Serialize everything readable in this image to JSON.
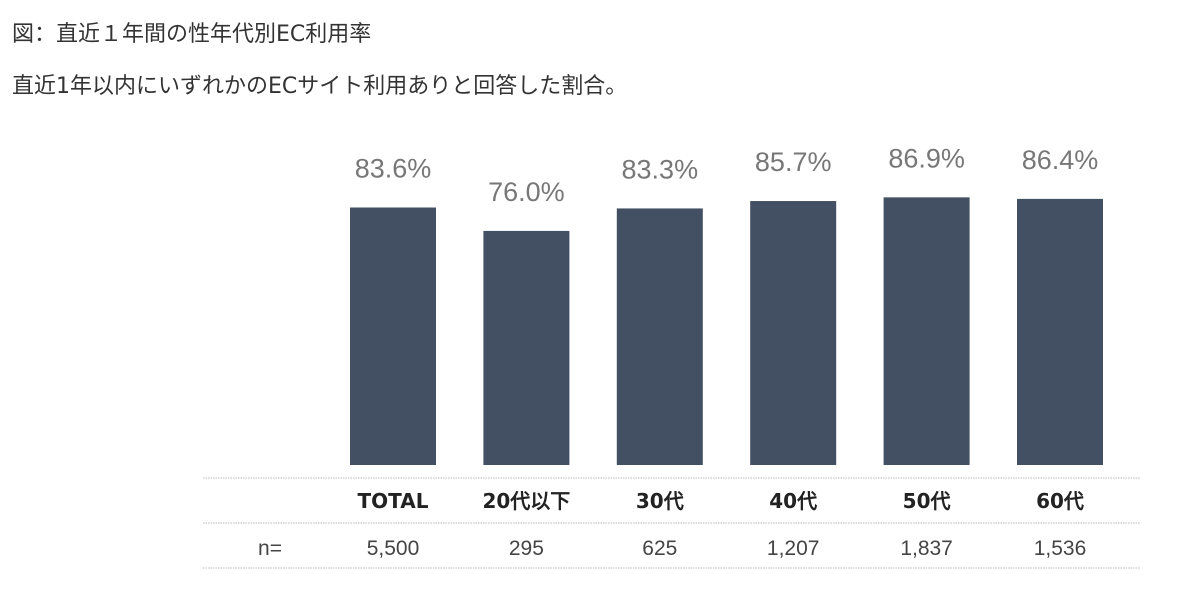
{
  "title": "図：直近１年間の性年代別EC利用率",
  "subtitle": "直近1年以内にいずれかのECサイト利用ありと回答した割合。",
  "colors": {
    "bar": "#434f62",
    "rule": "#c8c8c8"
  },
  "chart_data": {
    "type": "bar",
    "categories": [
      "TOTAL",
      "20代以下",
      "30代",
      "40代",
      "50代",
      "60代"
    ],
    "values": [
      83.6,
      76.0,
      83.3,
      85.7,
      86.9,
      86.4
    ],
    "value_labels": [
      "83.6%",
      "76.0%",
      "83.3%",
      "85.7%",
      "86.9%",
      "86.4%"
    ],
    "n_label": "n=",
    "n_values": [
      "5,500",
      "295",
      "625",
      "1,207",
      "1,837",
      "1,536"
    ],
    "unit": "%"
  }
}
